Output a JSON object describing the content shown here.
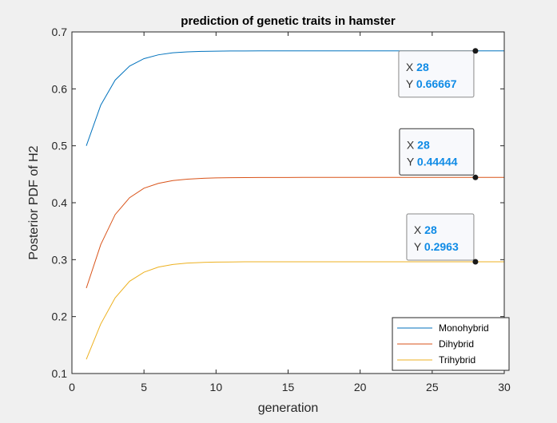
{
  "chart_data": {
    "type": "line",
    "title": "prediction of genetic traits in hamster",
    "xlabel": "generation",
    "ylabel": "Posterior PDF of H2",
    "xlim": [
      0,
      30
    ],
    "ylim": [
      0.1,
      0.7
    ],
    "xticks": [
      0,
      5,
      10,
      15,
      20,
      25,
      30
    ],
    "yticks": [
      0.1,
      0.2,
      0.3,
      0.4,
      0.5,
      0.6,
      0.7
    ],
    "xtick_labels": [
      "0",
      "5",
      "10",
      "15",
      "20",
      "25",
      "30"
    ],
    "ytick_labels": [
      "0.1",
      "0.2",
      "0.3",
      "0.4",
      "0.5",
      "0.6",
      "0.7"
    ],
    "grid": false,
    "legend": "bottom-right",
    "x": [
      1,
      2,
      3,
      4,
      5,
      6,
      7,
      8,
      9,
      10,
      11,
      12,
      13,
      14,
      15,
      16,
      17,
      18,
      19,
      20,
      21,
      22,
      23,
      24,
      25,
      26,
      27,
      28,
      29,
      30
    ],
    "series": [
      {
        "name": "Monohybrid",
        "color": "#0072bd",
        "values": [
          0.5,
          0.5714,
          0.6154,
          0.64,
          0.6531,
          0.6598,
          0.6633,
          0.665,
          0.6658,
          0.6662,
          0.6665,
          0.6666,
          0.66665,
          0.66666,
          0.66667,
          0.66667,
          0.66667,
          0.66667,
          0.66667,
          0.66667,
          0.66667,
          0.66667,
          0.66667,
          0.66667,
          0.66667,
          0.66667,
          0.66667,
          0.66667,
          0.66667,
          0.66667
        ]
      },
      {
        "name": "Dihybrid",
        "color": "#d95319",
        "values": [
          0.25,
          0.3265,
          0.3792,
          0.4088,
          0.4255,
          0.434,
          0.4389,
          0.4414,
          0.4428,
          0.4436,
          0.444,
          0.4442,
          0.4443,
          0.44437,
          0.4444,
          0.44442,
          0.44443,
          0.44444,
          0.44444,
          0.44444,
          0.44444,
          0.44444,
          0.44444,
          0.44444,
          0.44444,
          0.44444,
          0.44444,
          0.44444,
          0.44444,
          0.44444
        ]
      },
      {
        "name": "Trihybrid",
        "color": "#edb120",
        "values": [
          0.125,
          0.187,
          0.233,
          0.262,
          0.278,
          0.287,
          0.2915,
          0.294,
          0.2951,
          0.2957,
          0.296,
          0.2962,
          0.29625,
          0.29628,
          0.2963,
          0.2963,
          0.2963,
          0.2963,
          0.2963,
          0.2963,
          0.2963,
          0.2963,
          0.2963,
          0.2963,
          0.2963,
          0.2963,
          0.2963,
          0.2963,
          0.2963,
          0.2963
        ]
      }
    ],
    "datatips": [
      {
        "x": 28,
        "y": 0.66667,
        "x_label": "X",
        "y_label": "Y",
        "x_text": "28",
        "y_text": "0.66667"
      },
      {
        "x": 28,
        "y": 0.44444,
        "x_label": "X",
        "y_label": "Y",
        "x_text": "28",
        "y_text": "0.44444"
      },
      {
        "x": 28,
        "y": 0.2963,
        "x_label": "X",
        "y_label": "Y",
        "x_text": "28",
        "y_text": "0.2963"
      }
    ]
  }
}
